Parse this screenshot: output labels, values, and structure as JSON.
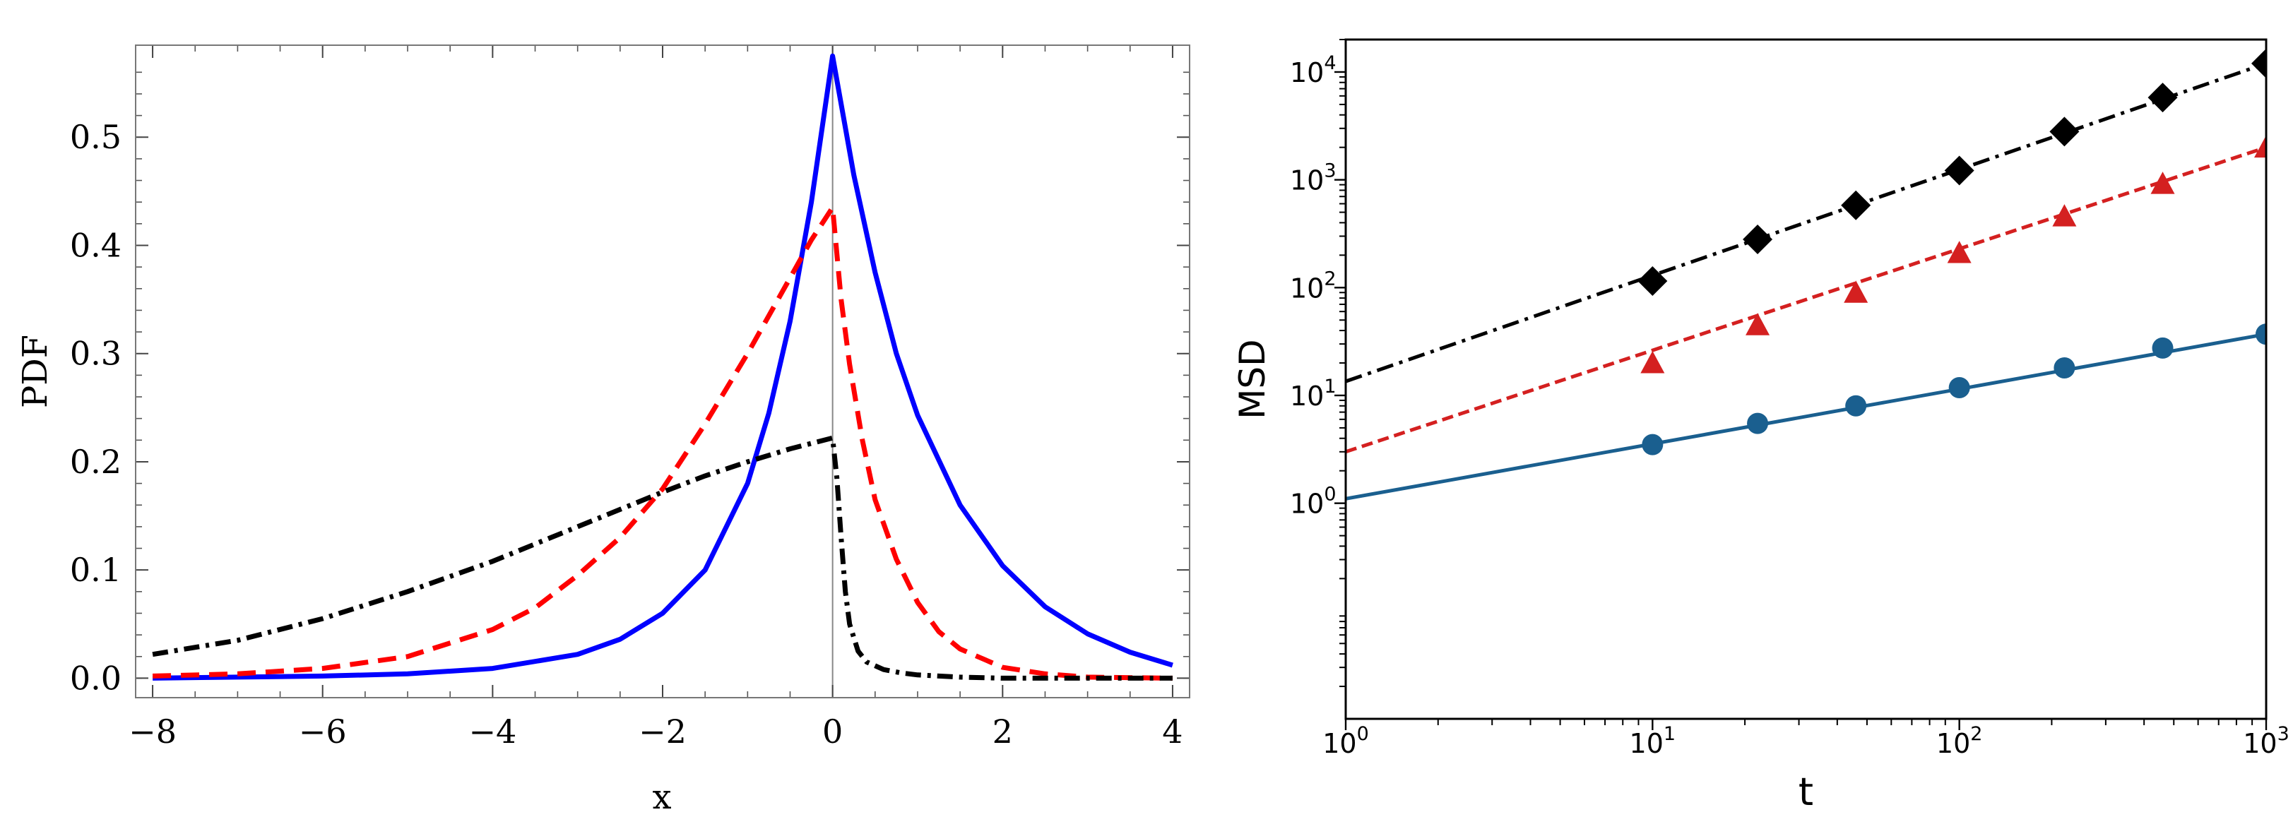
{
  "chart_data": [
    {
      "type": "line",
      "xlabel": "x",
      "ylabel": "PDF",
      "xlim": [
        -8.2,
        4.2
      ],
      "ylim": [
        -0.018,
        0.585
      ],
      "xticks": [
        -8,
        -6,
        -4,
        -2,
        0,
        2,
        4
      ],
      "xtick_labels": [
        "−8",
        "−6",
        "−4",
        "−2",
        "0",
        "2",
        "4"
      ],
      "yticks": [
        0.0,
        0.1,
        0.2,
        0.3,
        0.4,
        0.5
      ],
      "ytick_labels": [
        "0.0",
        "0.1",
        "0.2",
        "0.3",
        "0.4",
        "0.5"
      ],
      "vertical_line_x": 0,
      "series": [
        {
          "name": "blue solid",
          "color": "#0000ff",
          "style": "solid",
          "x": [
            -8,
            -7,
            -6,
            -5,
            -4,
            -3,
            -2.5,
            -2,
            -1.5,
            -1,
            -0.75,
            -0.5,
            -0.25,
            0,
            0.25,
            0.5,
            0.75,
            1,
            1.5,
            2,
            2.5,
            3,
            3.5,
            4
          ],
          "y": [
            0.0,
            0.001,
            0.002,
            0.004,
            0.009,
            0.022,
            0.036,
            0.06,
            0.1,
            0.18,
            0.245,
            0.33,
            0.44,
            0.575,
            0.465,
            0.375,
            0.3,
            0.243,
            0.16,
            0.104,
            0.066,
            0.041,
            0.024,
            0.012
          ]
        },
        {
          "name": "red dashed",
          "color": "#ff0000",
          "style": "dashed",
          "x": [
            -8,
            -7,
            -6,
            -5,
            -4,
            -3.5,
            -3,
            -2.5,
            -2,
            -1.5,
            -1,
            -0.5,
            -0.25,
            0,
            0.1,
            0.2,
            0.35,
            0.5,
            0.75,
            1,
            1.25,
            1.5,
            2,
            2.5,
            3,
            4
          ],
          "y": [
            0.002,
            0.004,
            0.009,
            0.02,
            0.045,
            0.065,
            0.095,
            0.13,
            0.175,
            0.235,
            0.3,
            0.37,
            0.405,
            0.435,
            0.35,
            0.29,
            0.22,
            0.165,
            0.11,
            0.07,
            0.043,
            0.027,
            0.01,
            0.004,
            0.001,
            0.0
          ]
        },
        {
          "name": "black dash-dot",
          "color": "#000000",
          "style": "dashdot",
          "x": [
            -8,
            -7,
            -6,
            -5,
            -4,
            -3,
            -2,
            -1.5,
            -1,
            -0.5,
            0,
            0.05,
            0.1,
            0.15,
            0.2,
            0.3,
            0.4,
            0.6,
            0.8,
            1,
            1.5,
            2,
            3,
            4
          ],
          "y": [
            0.022,
            0.035,
            0.055,
            0.08,
            0.108,
            0.14,
            0.172,
            0.187,
            0.2,
            0.212,
            0.222,
            0.185,
            0.13,
            0.08,
            0.05,
            0.025,
            0.015,
            0.008,
            0.005,
            0.003,
            0.001,
            0.0,
            0.0,
            0.0
          ]
        }
      ]
    },
    {
      "type": "line",
      "xscale": "log",
      "yscale": "log",
      "xlabel": "t",
      "ylabel": "MSD",
      "xlim": [
        1,
        1000
      ],
      "ylim": [
        0.01,
        20000
      ],
      "xticks": [
        1,
        10,
        100,
        1000
      ],
      "xtick_labels": [
        {
          "base": "10",
          "exp": "0"
        },
        {
          "base": "10",
          "exp": "1"
        },
        {
          "base": "10",
          "exp": "2"
        },
        {
          "base": "10",
          "exp": "3"
        }
      ],
      "yticks": [
        1,
        10,
        100,
        1000,
        10000
      ],
      "ytick_labels": [
        {
          "base": "10",
          "exp": "0"
        },
        {
          "base": "10",
          "exp": "1"
        },
        {
          "base": "10",
          "exp": "2"
        },
        {
          "base": "10",
          "exp": "3"
        },
        {
          "base": "10",
          "exp": "4"
        }
      ],
      "series": [
        {
          "name": "black dash-dot fit",
          "color": "#000000",
          "style": "dashdot",
          "marker": "diamond",
          "line_x": [
            1,
            1000
          ],
          "line_y": [
            13.5,
            12000
          ],
          "points_x": [
            10,
            22,
            46,
            100,
            220,
            460,
            1000
          ],
          "points_y": [
            115,
            280,
            580,
            1220,
            2800,
            5800,
            12000
          ]
        },
        {
          "name": "red dashed fit",
          "color": "#d42020",
          "style": "dashed",
          "marker": "triangle",
          "line_x": [
            1,
            1000
          ],
          "line_y": [
            3.0,
            2000
          ],
          "points_x": [
            10,
            22,
            46,
            100,
            220,
            460,
            1000
          ],
          "points_y": [
            20,
            45,
            90,
            210,
            460,
            920,
            2000
          ]
        },
        {
          "name": "teal solid fit",
          "color": "#1a5f8f",
          "style": "solid",
          "marker": "circle",
          "line_x": [
            1,
            1000
          ],
          "line_y": [
            1.1,
            37
          ],
          "points_x": [
            10,
            22,
            46,
            100,
            220,
            460,
            1000
          ],
          "points_y": [
            3.5,
            5.5,
            8.0,
            11.8,
            18,
            27.5,
            37
          ]
        }
      ]
    }
  ]
}
